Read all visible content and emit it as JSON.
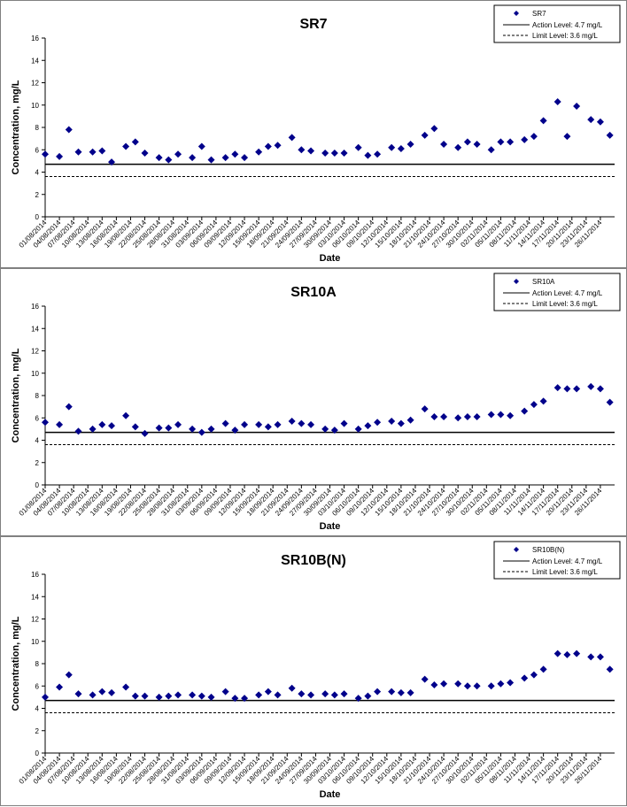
{
  "chart_data": [
    {
      "type": "scatter",
      "title": "SR7",
      "xlabel": "Date",
      "ylabel": "Concentration, mg/L",
      "ylim": [
        0,
        16
      ],
      "yticks": [
        0,
        2,
        4,
        6,
        8,
        10,
        12,
        14,
        16
      ],
      "xlim": [
        "01/08/2014",
        "29/11/2014"
      ],
      "x_tick_labels": [
        "01/08/2014",
        "04/08/2014",
        "07/08/2014",
        "10/08/2014",
        "13/08/2014",
        "16/08/2014",
        "19/08/2014",
        "22/08/2014",
        "25/08/2014",
        "28/08/2014",
        "31/08/2014",
        "03/09/2014",
        "06/09/2014",
        "09/09/2014",
        "12/09/2014",
        "15/09/2014",
        "18/09/2014",
        "21/09/2014",
        "24/09/2014",
        "27/09/2014",
        "30/09/2014",
        "03/10/2014",
        "06/10/2014",
        "09/10/2014",
        "12/10/2014",
        "15/10/2014",
        "18/10/2014",
        "21/10/2014",
        "24/10/2014",
        "27/10/2014",
        "30/10/2014",
        "02/11/2014",
        "05/11/2014",
        "08/11/2014",
        "11/11/2014",
        "14/11/2014",
        "17/11/2014",
        "20/11/2014",
        "23/11/2014",
        "26/11/2014"
      ],
      "grid": false,
      "legend_position": "top-right",
      "series": [
        {
          "name": "SR7",
          "color": "#00008B",
          "marker": "diamond",
          "x": [
            "01/08/2014",
            "04/08/2014",
            "06/08/2014",
            "08/08/2014",
            "11/08/2014",
            "13/08/2014",
            "15/08/2014",
            "18/08/2014",
            "20/08/2014",
            "22/08/2014",
            "25/08/2014",
            "27/08/2014",
            "29/08/2014",
            "01/09/2014",
            "03/09/2014",
            "05/09/2014",
            "08/09/2014",
            "10/09/2014",
            "12/09/2014",
            "15/09/2014",
            "17/09/2014",
            "19/09/2014",
            "22/09/2014",
            "24/09/2014",
            "26/09/2014",
            "29/09/2014",
            "01/10/2014",
            "03/10/2014",
            "06/10/2014",
            "08/10/2014",
            "10/10/2014",
            "13/10/2014",
            "15/10/2014",
            "17/10/2014",
            "20/10/2014",
            "22/10/2014",
            "24/10/2014",
            "27/10/2014",
            "29/10/2014",
            "31/10/2014",
            "03/11/2014",
            "05/11/2014",
            "07/11/2014",
            "10/11/2014",
            "12/11/2014",
            "14/11/2014",
            "17/11/2014",
            "19/11/2014",
            "21/11/2014",
            "24/11/2014",
            "26/11/2014",
            "28/11/2014"
          ],
          "values": [
            5.6,
            5.4,
            7.8,
            5.8,
            5.8,
            5.9,
            4.9,
            6.3,
            6.7,
            5.7,
            5.3,
            5.1,
            5.6,
            5.3,
            6.3,
            5.1,
            5.3,
            5.6,
            5.3,
            5.8,
            6.3,
            6.4,
            7.1,
            6.0,
            5.9,
            5.7,
            5.7,
            5.7,
            6.2,
            5.5,
            5.6,
            6.2,
            6.1,
            6.5,
            7.3,
            7.9,
            6.5,
            6.2,
            6.7,
            6.5,
            6.0,
            6.7,
            6.7,
            6.9,
            7.2,
            8.6,
            10.3,
            7.2,
            9.9,
            8.7,
            8.5,
            7.3
          ]
        }
      ],
      "reference_lines": [
        {
          "name": "Action Level: 4.7 mg/L",
          "value": 4.7,
          "style": "solid"
        },
        {
          "name": "Limit Level: 3.6 mg/L",
          "value": 3.6,
          "style": "dashed"
        }
      ]
    },
    {
      "type": "scatter",
      "title": "SR10A",
      "xlabel": "Date",
      "ylabel": "Concentration, mg/L",
      "ylim": [
        0,
        16
      ],
      "yticks": [
        0,
        2,
        4,
        6,
        8,
        10,
        12,
        14,
        16
      ],
      "xlim": [
        "01/08/2014",
        "29/11/2014"
      ],
      "x_tick_labels": [
        "01/08/2014",
        "04/08/2014",
        "07/08/2014",
        "10/08/2014",
        "13/08/2014",
        "16/08/2014",
        "19/08/2014",
        "22/08/2014",
        "25/08/2014",
        "28/08/2014",
        "31/08/2014",
        "03/09/2014",
        "06/09/2014",
        "09/09/2014",
        "12/09/2014",
        "15/09/2014",
        "18/09/2014",
        "21/09/2014",
        "24/09/2014",
        "27/09/2014",
        "30/09/2014",
        "03/10/2014",
        "06/10/2014",
        "09/10/2014",
        "12/10/2014",
        "15/10/2014",
        "18/10/2014",
        "21/10/2014",
        "24/10/2014",
        "27/10/2014",
        "30/10/2014",
        "02/11/2014",
        "05/11/2014",
        "08/11/2014",
        "11/11/2014",
        "14/11/2014",
        "17/11/2014",
        "20/11/2014",
        "23/11/2014",
        "26/11/2014"
      ],
      "grid": false,
      "legend_position": "top-right",
      "series": [
        {
          "name": "SR10A",
          "color": "#00008B",
          "marker": "diamond",
          "x": [
            "01/08/2014",
            "04/08/2014",
            "06/08/2014",
            "08/08/2014",
            "11/08/2014",
            "13/08/2014",
            "15/08/2014",
            "18/08/2014",
            "20/08/2014",
            "22/08/2014",
            "25/08/2014",
            "27/08/2014",
            "29/08/2014",
            "01/09/2014",
            "03/09/2014",
            "05/09/2014",
            "08/09/2014",
            "10/09/2014",
            "12/09/2014",
            "15/09/2014",
            "17/09/2014",
            "19/09/2014",
            "22/09/2014",
            "24/09/2014",
            "26/09/2014",
            "29/09/2014",
            "01/10/2014",
            "03/10/2014",
            "06/10/2014",
            "08/10/2014",
            "10/10/2014",
            "13/10/2014",
            "15/10/2014",
            "17/10/2014",
            "20/10/2014",
            "22/10/2014",
            "24/10/2014",
            "27/10/2014",
            "29/10/2014",
            "31/10/2014",
            "03/11/2014",
            "05/11/2014",
            "07/11/2014",
            "10/11/2014",
            "12/11/2014",
            "14/11/2014",
            "17/11/2014",
            "19/11/2014",
            "21/11/2014",
            "24/11/2014",
            "26/11/2014",
            "28/11/2014"
          ],
          "values": [
            5.6,
            5.4,
            7.0,
            4.8,
            5.0,
            5.4,
            5.3,
            6.2,
            5.2,
            4.6,
            5.1,
            5.1,
            5.4,
            5.0,
            4.7,
            5.0,
            5.5,
            4.9,
            5.4,
            5.4,
            5.2,
            5.4,
            5.7,
            5.5,
            5.4,
            5.0,
            4.9,
            5.5,
            5.0,
            5.3,
            5.6,
            5.7,
            5.5,
            5.8,
            6.8,
            6.1,
            6.1,
            6.0,
            6.1,
            6.1,
            6.3,
            6.3,
            6.2,
            6.6,
            7.2,
            7.5,
            8.7,
            8.6,
            8.6,
            8.8,
            8.6,
            7.4
          ]
        }
      ],
      "reference_lines": [
        {
          "name": "Action Level: 4.7 mg/L",
          "value": 4.7,
          "style": "solid"
        },
        {
          "name": "Limit Level: 3.6 mg/L",
          "value": 3.6,
          "style": "dashed"
        }
      ]
    },
    {
      "type": "scatter",
      "title": "SR10B(N)",
      "xlabel": "Date",
      "ylabel": "Concentration, mg/L",
      "ylim": [
        0,
        16
      ],
      "yticks": [
        0,
        2,
        4,
        6,
        8,
        10,
        12,
        14,
        16
      ],
      "xlim": [
        "01/08/2014",
        "29/11/2014"
      ],
      "x_tick_labels": [
        "01/08/2014",
        "04/08/2014",
        "07/08/2014",
        "10/08/2014",
        "13/08/2014",
        "16/08/2014",
        "19/08/2014",
        "22/08/2014",
        "25/08/2014",
        "28/08/2014",
        "31/08/2014",
        "03/09/2014",
        "06/09/2014",
        "09/09/2014",
        "12/09/2014",
        "15/09/2014",
        "18/09/2014",
        "21/09/2014",
        "24/09/2014",
        "27/09/2014",
        "30/09/2014",
        "03/10/2014",
        "06/10/2014",
        "09/10/2014",
        "12/10/2014",
        "15/10/2014",
        "18/10/2014",
        "21/10/2014",
        "24/10/2014",
        "27/10/2014",
        "30/10/2014",
        "02/11/2014",
        "05/11/2014",
        "08/11/2014",
        "11/11/2014",
        "14/11/2014",
        "17/11/2014",
        "20/11/2014",
        "23/11/2014",
        "26/11/2014"
      ],
      "grid": false,
      "legend_position": "top-right",
      "series": [
        {
          "name": "SR10B(N)",
          "color": "#00008B",
          "marker": "diamond",
          "x": [
            "01/08/2014",
            "04/08/2014",
            "06/08/2014",
            "08/08/2014",
            "11/08/2014",
            "13/08/2014",
            "15/08/2014",
            "18/08/2014",
            "20/08/2014",
            "22/08/2014",
            "25/08/2014",
            "27/08/2014",
            "29/08/2014",
            "01/09/2014",
            "03/09/2014",
            "05/09/2014",
            "08/09/2014",
            "10/09/2014",
            "12/09/2014",
            "15/09/2014",
            "17/09/2014",
            "19/09/2014",
            "22/09/2014",
            "24/09/2014",
            "26/09/2014",
            "29/09/2014",
            "01/10/2014",
            "03/10/2014",
            "06/10/2014",
            "08/10/2014",
            "10/10/2014",
            "13/10/2014",
            "15/10/2014",
            "17/10/2014",
            "20/10/2014",
            "22/10/2014",
            "24/10/2014",
            "27/10/2014",
            "29/10/2014",
            "31/10/2014",
            "03/11/2014",
            "05/11/2014",
            "07/11/2014",
            "10/11/2014",
            "12/11/2014",
            "14/11/2014",
            "17/11/2014",
            "19/11/2014",
            "21/11/2014",
            "24/11/2014",
            "26/11/2014",
            "28/11/2014"
          ],
          "values": [
            5.0,
            5.9,
            7.0,
            5.3,
            5.2,
            5.5,
            5.4,
            5.9,
            5.1,
            5.1,
            5.0,
            5.1,
            5.2,
            5.2,
            5.1,
            5.0,
            5.5,
            4.9,
            4.9,
            5.2,
            5.5,
            5.2,
            5.8,
            5.3,
            5.2,
            5.3,
            5.2,
            5.3,
            4.9,
            5.1,
            5.5,
            5.5,
            5.4,
            5.4,
            6.6,
            6.1,
            6.2,
            6.2,
            6.0,
            6.0,
            6.0,
            6.2,
            6.3,
            6.7,
            7.0,
            7.5,
            8.9,
            8.8,
            8.9,
            8.6,
            8.6,
            7.5
          ]
        }
      ],
      "reference_lines": [
        {
          "name": "Action Level: 4.7 mg/L",
          "value": 4.7,
          "style": "solid"
        },
        {
          "name": "Limit Level: 3.6 mg/L",
          "value": 3.6,
          "style": "dashed"
        }
      ]
    }
  ]
}
